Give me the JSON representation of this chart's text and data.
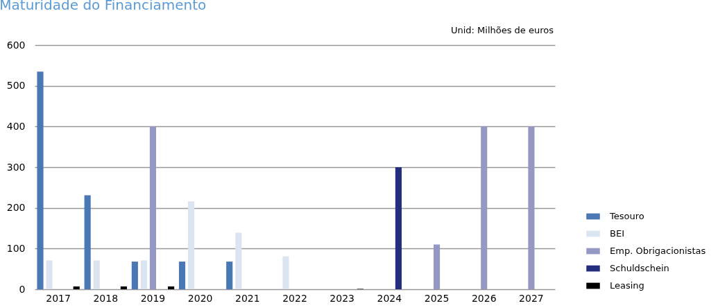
{
  "chart_data": {
    "type": "bar",
    "title": "Maturidade do Financiamento",
    "annotations": [
      "Unid: Milhões de euros"
    ],
    "categories": [
      "2017",
      "2018",
      "2019",
      "2020",
      "2021",
      "2022",
      "2023",
      "2024",
      "2025",
      "2026",
      "2027"
    ],
    "series": [
      {
        "name": "Tesouro",
        "color": "#4a78b4",
        "values": [
          535,
          231,
          68,
          68,
          68,
          null,
          null,
          null,
          null,
          null,
          null
        ]
      },
      {
        "name": "BEI",
        "color": "#dbe5f1",
        "values": [
          71,
          71,
          71,
          216,
          139,
          81,
          null,
          null,
          null,
          null,
          null
        ]
      },
      {
        "name": "Emp. Obrigacionistas",
        "color": "#9498c2",
        "values": [
          null,
          null,
          400,
          null,
          null,
          null,
          null,
          null,
          110,
          400,
          400
        ]
      },
      {
        "name": "Schuldschein",
        "color": "#232e7f",
        "values": [
          null,
          null,
          null,
          null,
          null,
          null,
          null,
          300,
          null,
          null,
          null
        ]
      },
      {
        "name": "Leasing",
        "color": "#000000",
        "values": [
          7,
          7,
          7,
          null,
          null,
          null,
          1,
          null,
          null,
          null,
          null
        ]
      }
    ],
    "ylim": [
      0,
      600
    ],
    "yticks": [
      0,
      100,
      200,
      300,
      400,
      500,
      600
    ],
    "grid": "y",
    "legend": "bottom right"
  }
}
